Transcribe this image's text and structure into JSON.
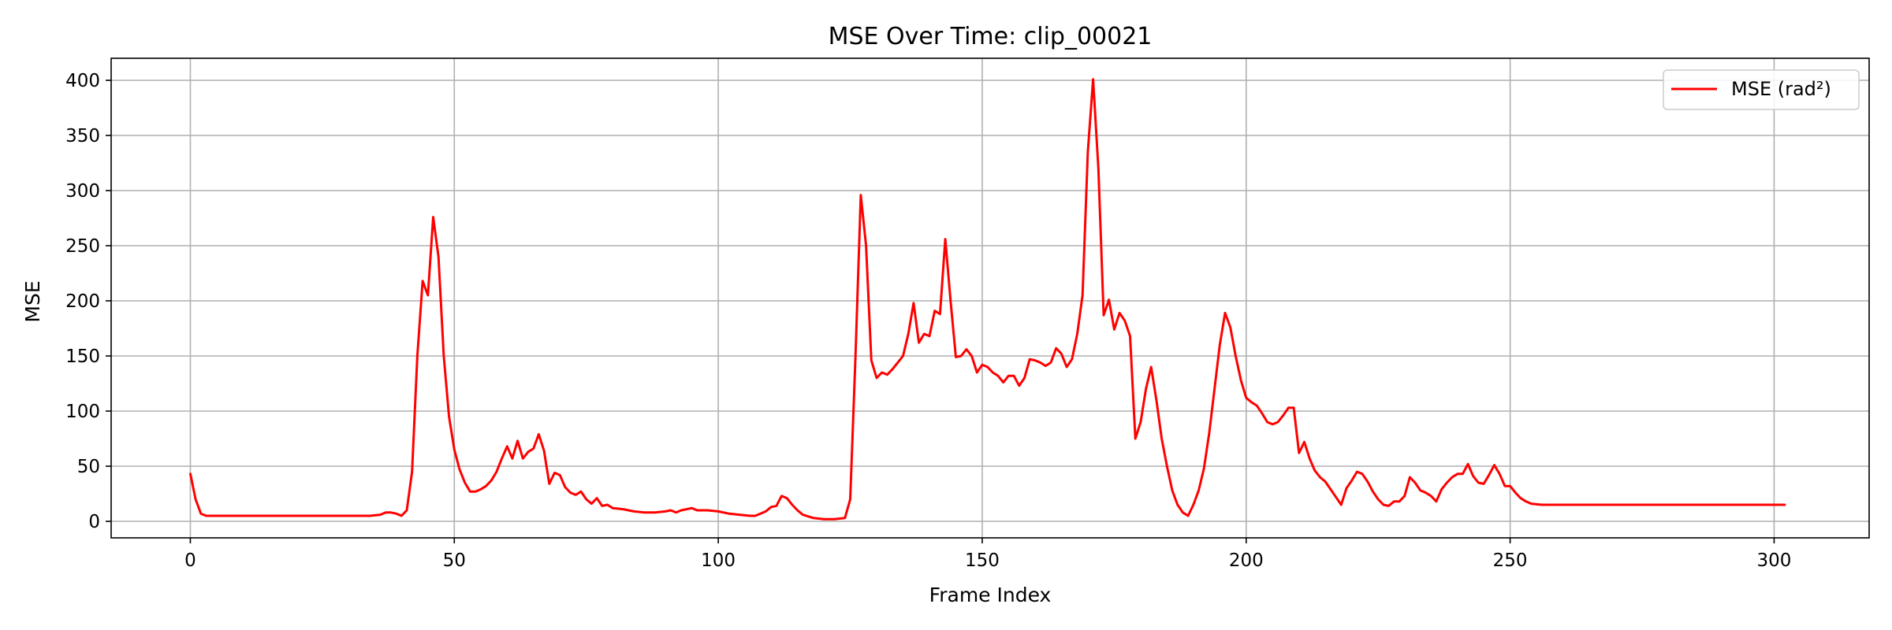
{
  "chart_data": {
    "type": "line",
    "title": "MSE Over Time: clip_00021",
    "xlabel": "Frame Index",
    "ylabel": "MSE",
    "xlim": [
      -15,
      318
    ],
    "ylim": [
      -15,
      420
    ],
    "xticks": [
      0,
      50,
      100,
      150,
      200,
      250,
      300
    ],
    "yticks": [
      0,
      50,
      100,
      150,
      200,
      250,
      300,
      350,
      400
    ],
    "grid": true,
    "legend_position": "top-right",
    "series": [
      {
        "name": "MSE (rad²)",
        "color": "#ff0000",
        "points": [
          [
            0,
            43
          ],
          [
            1,
            20
          ],
          [
            2,
            7
          ],
          [
            3,
            5
          ],
          [
            5,
            5
          ],
          [
            10,
            5
          ],
          [
            15,
            5
          ],
          [
            20,
            5
          ],
          [
            25,
            5
          ],
          [
            30,
            5
          ],
          [
            34,
            5
          ],
          [
            36,
            6
          ],
          [
            37,
            8
          ],
          [
            38,
            8
          ],
          [
            39,
            7
          ],
          [
            40,
            5
          ],
          [
            41,
            10
          ],
          [
            42,
            45
          ],
          [
            43,
            150
          ],
          [
            44,
            218
          ],
          [
            45,
            205
          ],
          [
            46,
            276
          ],
          [
            47,
            240
          ],
          [
            48,
            150
          ],
          [
            49,
            95
          ],
          [
            50,
            65
          ],
          [
            51,
            47
          ],
          [
            52,
            35
          ],
          [
            53,
            27
          ],
          [
            54,
            27
          ],
          [
            55,
            29
          ],
          [
            56,
            32
          ],
          [
            57,
            37
          ],
          [
            58,
            45
          ],
          [
            59,
            57
          ],
          [
            60,
            68
          ],
          [
            61,
            57
          ],
          [
            62,
            73
          ],
          [
            63,
            57
          ],
          [
            64,
            63
          ],
          [
            65,
            66
          ],
          [
            66,
            79
          ],
          [
            67,
            64
          ],
          [
            68,
            34
          ],
          [
            69,
            44
          ],
          [
            70,
            42
          ],
          [
            71,
            31
          ],
          [
            72,
            26
          ],
          [
            73,
            24
          ],
          [
            74,
            27
          ],
          [
            75,
            20
          ],
          [
            76,
            16
          ],
          [
            77,
            21
          ],
          [
            78,
            14
          ],
          [
            79,
            15
          ],
          [
            80,
            12
          ],
          [
            82,
            11
          ],
          [
            84,
            9
          ],
          [
            86,
            8
          ],
          [
            88,
            8
          ],
          [
            90,
            9
          ],
          [
            91,
            10
          ],
          [
            92,
            8
          ],
          [
            93,
            10
          ],
          [
            94,
            11
          ],
          [
            95,
            12
          ],
          [
            96,
            10
          ],
          [
            98,
            10
          ],
          [
            100,
            9
          ],
          [
            102,
            7
          ],
          [
            104,
            6
          ],
          [
            106,
            5
          ],
          [
            107,
            5
          ],
          [
            108,
            7
          ],
          [
            109,
            9
          ],
          [
            110,
            13
          ],
          [
            111,
            14
          ],
          [
            112,
            23
          ],
          [
            113,
            21
          ],
          [
            114,
            15
          ],
          [
            115,
            10
          ],
          [
            116,
            6
          ],
          [
            118,
            3
          ],
          [
            120,
            2
          ],
          [
            122,
            2
          ],
          [
            124,
            3
          ],
          [
            125,
            20
          ],
          [
            126,
            150
          ],
          [
            127,
            296
          ],
          [
            128,
            250
          ],
          [
            129,
            146
          ],
          [
            130,
            130
          ],
          [
            131,
            135
          ],
          [
            132,
            133
          ],
          [
            133,
            138
          ],
          [
            134,
            144
          ],
          [
            135,
            150
          ],
          [
            136,
            170
          ],
          [
            137,
            198
          ],
          [
            138,
            162
          ],
          [
            139,
            170
          ],
          [
            140,
            168
          ],
          [
            141,
            191
          ],
          [
            142,
            188
          ],
          [
            143,
            256
          ],
          [
            144,
            200
          ],
          [
            145,
            149
          ],
          [
            146,
            150
          ],
          [
            147,
            156
          ],
          [
            148,
            150
          ],
          [
            149,
            135
          ],
          [
            150,
            142
          ],
          [
            151,
            140
          ],
          [
            152,
            135
          ],
          [
            153,
            132
          ],
          [
            154,
            126
          ],
          [
            155,
            132
          ],
          [
            156,
            132
          ],
          [
            157,
            123
          ],
          [
            158,
            130
          ],
          [
            159,
            147
          ],
          [
            160,
            146
          ],
          [
            161,
            144
          ],
          [
            162,
            141
          ],
          [
            163,
            144
          ],
          [
            164,
            157
          ],
          [
            165,
            152
          ],
          [
            166,
            140
          ],
          [
            167,
            147
          ],
          [
            168,
            170
          ],
          [
            169,
            205
          ],
          [
            170,
            335
          ],
          [
            171,
            401
          ],
          [
            172,
            320
          ],
          [
            173,
            187
          ],
          [
            174,
            201
          ],
          [
            175,
            174
          ],
          [
            176,
            189
          ],
          [
            177,
            182
          ],
          [
            178,
            168
          ],
          [
            179,
            75
          ],
          [
            180,
            90
          ],
          [
            181,
            120
          ],
          [
            182,
            140
          ],
          [
            183,
            110
          ],
          [
            184,
            75
          ],
          [
            185,
            50
          ],
          [
            186,
            28
          ],
          [
            187,
            15
          ],
          [
            188,
            8
          ],
          [
            189,
            5
          ],
          [
            190,
            15
          ],
          [
            191,
            28
          ],
          [
            192,
            48
          ],
          [
            193,
            80
          ],
          [
            194,
            120
          ],
          [
            195,
            160
          ],
          [
            196,
            189
          ],
          [
            197,
            176
          ],
          [
            198,
            150
          ],
          [
            199,
            128
          ],
          [
            200,
            112
          ],
          [
            201,
            108
          ],
          [
            202,
            105
          ],
          [
            203,
            98
          ],
          [
            204,
            90
          ],
          [
            205,
            88
          ],
          [
            206,
            90
          ],
          [
            207,
            96
          ],
          [
            208,
            103
          ],
          [
            209,
            103
          ],
          [
            210,
            62
          ],
          [
            211,
            72
          ],
          [
            212,
            57
          ],
          [
            213,
            46
          ],
          [
            214,
            40
          ],
          [
            215,
            36
          ],
          [
            216,
            29
          ],
          [
            217,
            22
          ],
          [
            218,
            15
          ],
          [
            219,
            30
          ],
          [
            220,
            37
          ],
          [
            221,
            45
          ],
          [
            222,
            43
          ],
          [
            223,
            36
          ],
          [
            224,
            27
          ],
          [
            225,
            20
          ],
          [
            226,
            15
          ],
          [
            227,
            14
          ],
          [
            228,
            18
          ],
          [
            229,
            18
          ],
          [
            230,
            23
          ],
          [
            231,
            40
          ],
          [
            232,
            35
          ],
          [
            233,
            28
          ],
          [
            234,
            26
          ],
          [
            235,
            23
          ],
          [
            236,
            18
          ],
          [
            237,
            29
          ],
          [
            238,
            35
          ],
          [
            239,
            40
          ],
          [
            240,
            43
          ],
          [
            241,
            43
          ],
          [
            242,
            52
          ],
          [
            243,
            41
          ],
          [
            244,
            35
          ],
          [
            245,
            34
          ],
          [
            246,
            42
          ],
          [
            247,
            51
          ],
          [
            248,
            43
          ],
          [
            249,
            32
          ],
          [
            250,
            32
          ],
          [
            251,
            26
          ],
          [
            252,
            21
          ],
          [
            253,
            18
          ],
          [
            254,
            16
          ],
          [
            256,
            15
          ],
          [
            260,
            15
          ],
          [
            265,
            15
          ],
          [
            270,
            15
          ],
          [
            275,
            15
          ],
          [
            280,
            15
          ],
          [
            285,
            15
          ],
          [
            290,
            15
          ],
          [
            295,
            15
          ],
          [
            300,
            15
          ],
          [
            302,
            15
          ]
        ]
      }
    ]
  }
}
